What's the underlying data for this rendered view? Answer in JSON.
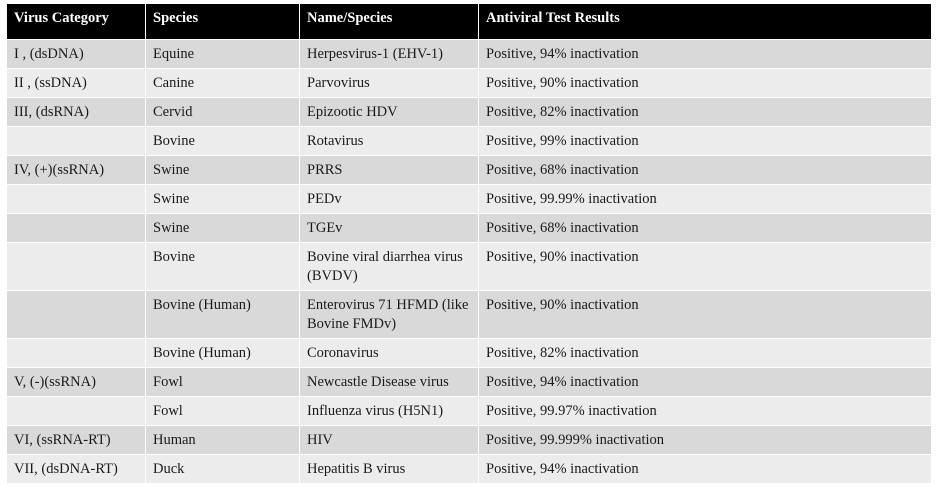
{
  "table": {
    "headers": [
      "Virus Category",
      "Species",
      "Name/Species",
      "Antiviral Test Results"
    ],
    "rows": [
      [
        "I , (dsDNA)",
        "Equine",
        "Herpesvirus-1 (EHV-1)",
        "Positive, 94% inactivation"
      ],
      [
        "II , (ssDNA)",
        "Canine",
        "Parvovirus",
        "Positive, 90% inactivation"
      ],
      [
        "III, (dsRNA)",
        "Cervid",
        "Epizootic HDV",
        "Positive, 82% inactivation"
      ],
      [
        "",
        "Bovine",
        "Rotavirus",
        "Positive, 99% inactivation"
      ],
      [
        "IV, (+)(ssRNA)",
        "Swine",
        "PRRS",
        "Positive, 68% inactivation"
      ],
      [
        "",
        "Swine",
        "PEDv",
        "Positive, 99.99% inactivation"
      ],
      [
        "",
        "Swine",
        "TGEv",
        "Positive, 68% inactivation"
      ],
      [
        "",
        "Bovine",
        "Bovine viral diarrhea virus (BVDV)",
        "Positive, 90% inactivation"
      ],
      [
        "",
        "Bovine (Human)",
        "Enterovirus 71 HFMD (like Bovine FMDv)",
        "Positive, 90% inactivation"
      ],
      [
        "",
        "Bovine (Human)",
        "Coronavirus",
        "Positive, 82% inactivation"
      ],
      [
        "V, (-)(ssRNA)",
        "Fowl",
        "Newcastle Disease virus",
        "Positive, 94% inactivation"
      ],
      [
        "",
        "Fowl",
        "Influenza virus (H5N1)",
        "Positive, 99.97% inactivation"
      ],
      [
        "VI, (ssRNA-RT)",
        "Human",
        "HIV",
        "Positive, 99.999% inactivation"
      ],
      [
        "VII, (dsDNA-RT)",
        "Duck",
        "Hepatitis B virus",
        "Positive, 94% inactivation"
      ]
    ]
  }
}
